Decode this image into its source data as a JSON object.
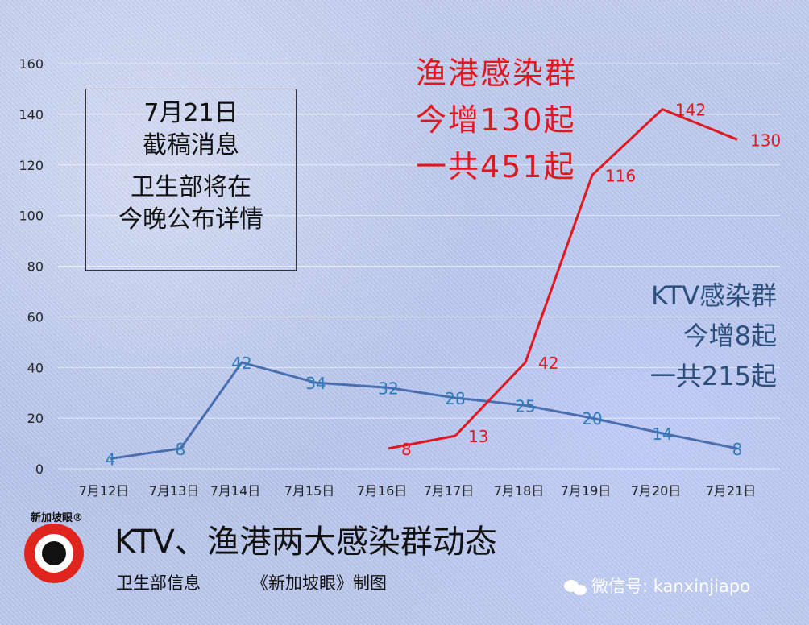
{
  "chart_data": {
    "type": "line",
    "categories": [
      "7月12日",
      "7月13日",
      "7月14日",
      "7月15日",
      "7月16日",
      "7月17日",
      "7月18日",
      "7月19日",
      "7月20日",
      "7月21日"
    ],
    "ylim": [
      0,
      160
    ],
    "yticks": [
      0,
      20,
      40,
      60,
      80,
      100,
      120,
      140,
      160
    ],
    "grid": true,
    "series": [
      {
        "color": "#4a6fb0",
        "label_color": "#2e7bb8",
        "values": [
          4,
          8,
          42,
          34,
          32,
          28,
          25,
          20,
          14,
          8
        ]
      },
      {
        "color": "#e0181f",
        "label_color": "#e0181f",
        "values": [
          null,
          null,
          null,
          null,
          8,
          13,
          42,
          116,
          142,
          130
        ]
      }
    ],
    "title": "KTV、渔港两大感染群动态"
  },
  "note": {
    "date": "7月21日",
    "line2": "截稿消息",
    "line3": "卫生部将在",
    "line4": "今晚公布详情"
  },
  "red_annotation": [
    "渔港感染群",
    "今增130起",
    "一共451起"
  ],
  "blue_annotation": [
    "KTV感染群",
    "今增8起",
    "一共215起"
  ],
  "footer": {
    "title": "KTV、渔港两大感染群动态",
    "source": "卫生部信息",
    "credit": "《新加坡眼》制图"
  },
  "logo": {
    "text": "新加坡眼®",
    "icon": "eye-logo-icon"
  },
  "watermark": {
    "icon": "wechat-icon",
    "text": "微信号: kanxinjiapo"
  }
}
